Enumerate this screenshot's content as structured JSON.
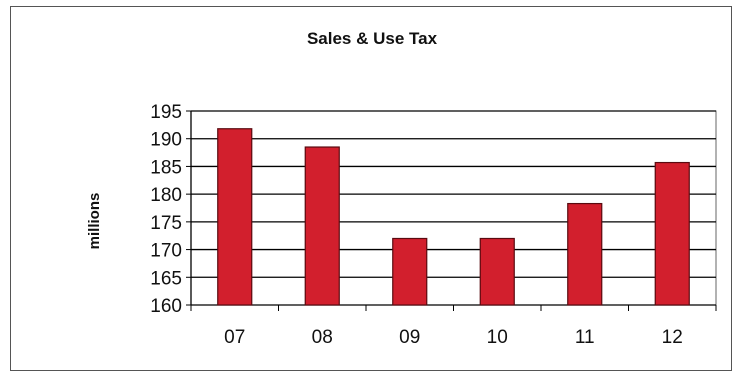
{
  "chart_data": {
    "type": "bar",
    "title": "Sales & Use Tax",
    "xlabel": "",
    "ylabel": "millions",
    "categories": [
      "07",
      "08",
      "09",
      "10",
      "11",
      "12"
    ],
    "values": [
      191.8,
      188.5,
      172.0,
      172.0,
      178.3,
      185.7
    ],
    "ylim": [
      160,
      195
    ],
    "yticks": [
      160,
      165,
      170,
      175,
      180,
      185,
      190,
      195
    ],
    "grid": true,
    "legend": "none",
    "bar_color": "#d21f2d",
    "bar_edge_color": "#5a0a10"
  }
}
